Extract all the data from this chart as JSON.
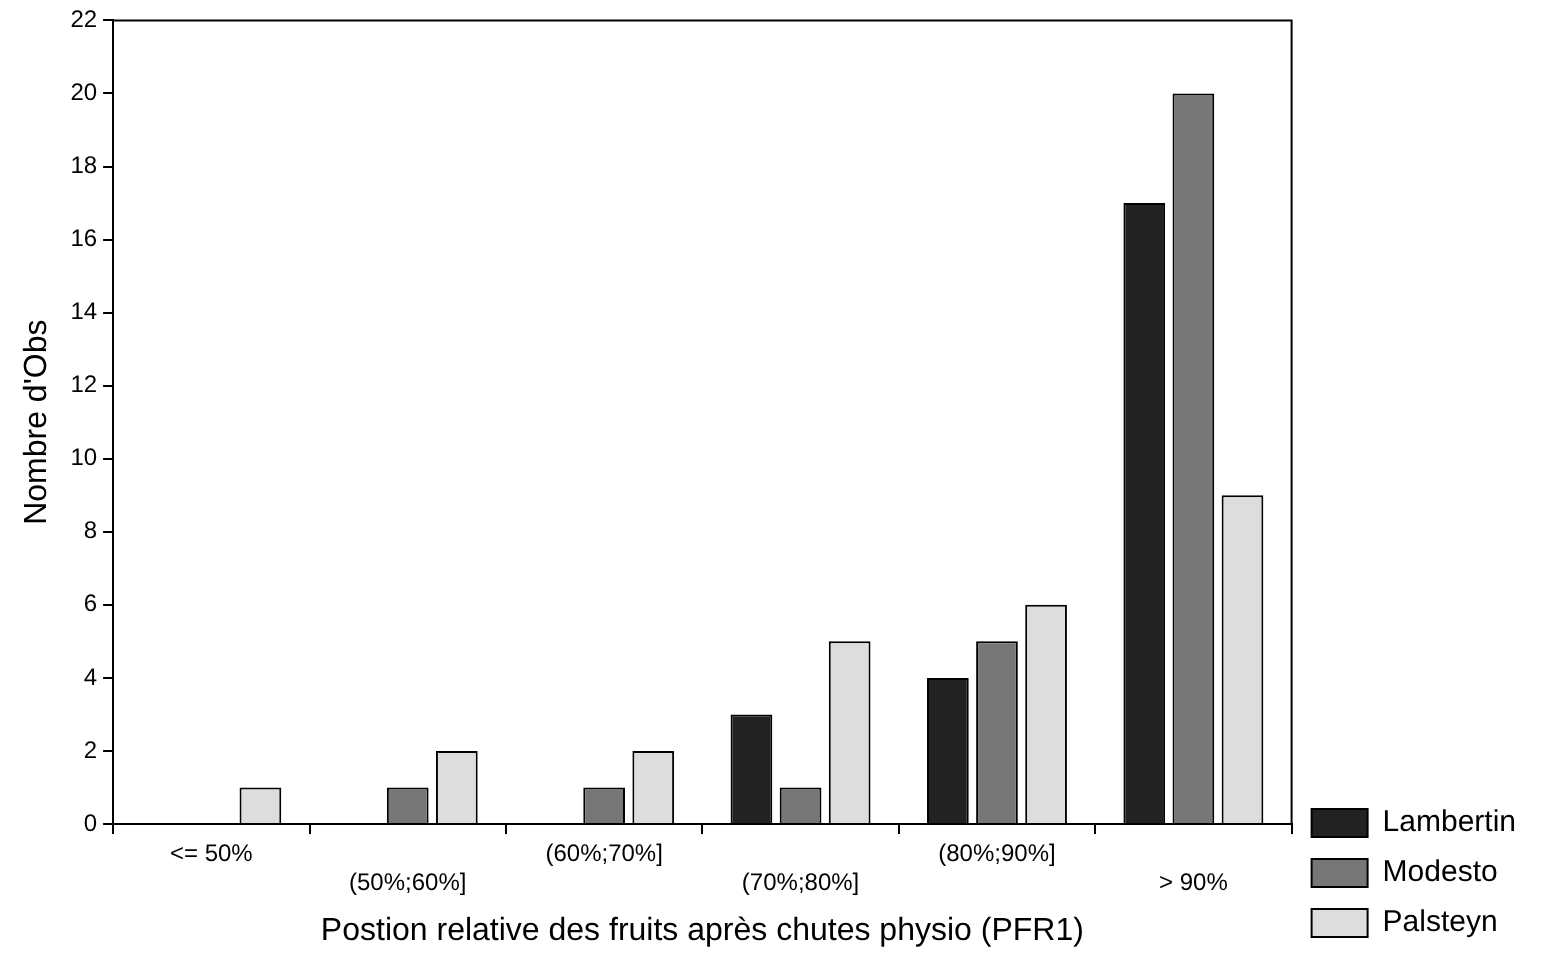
{
  "chart_data": {
    "type": "bar",
    "xlabel": "Postion relative des fruits après chutes physio (PFR1)",
    "ylabel": "Nombre d'Obs",
    "categories": [
      "<= 50%",
      "(50%;60%]",
      "(60%;70%]",
      "(70%;80%]",
      "(80%;90%]",
      "> 90%"
    ],
    "series": [
      {
        "name": "Lambertin",
        "color": "#222222",
        "values": [
          0,
          0,
          0,
          3,
          4,
          17
        ]
      },
      {
        "name": "Modesto",
        "color": "#777777",
        "values": [
          0,
          1,
          1,
          1,
          5,
          20
        ]
      },
      {
        "name": "Palsteyn",
        "color": "#dddddd",
        "values": [
          1,
          2,
          2,
          5,
          6,
          9
        ]
      }
    ],
    "ylim": [
      0,
      22
    ],
    "yticks": [
      0,
      2,
      4,
      6,
      8,
      10,
      12,
      14,
      16,
      18,
      20,
      22
    ],
    "grid": false,
    "legend": "bottom right"
  }
}
